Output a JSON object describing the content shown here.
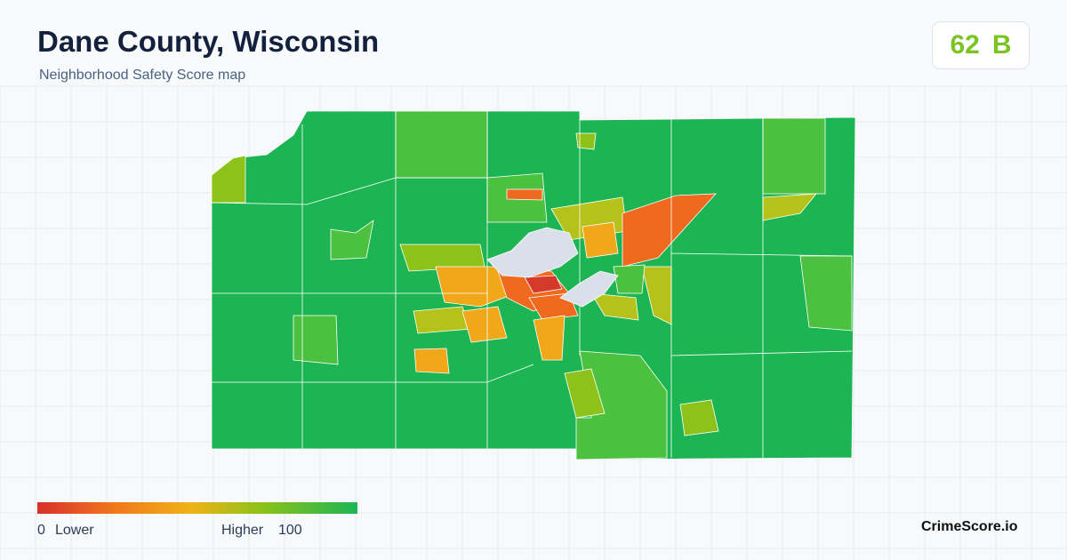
{
  "header": {
    "title": "Dane County, Wisconsin",
    "subtitle": "Neighborhood Safety Score map"
  },
  "score": {
    "value": 62,
    "grade": "B"
  },
  "legend": {
    "min": 0,
    "min_label": "Lower",
    "max_label": "Higher",
    "max": 100
  },
  "brand": "CrimeScore.io"
}
